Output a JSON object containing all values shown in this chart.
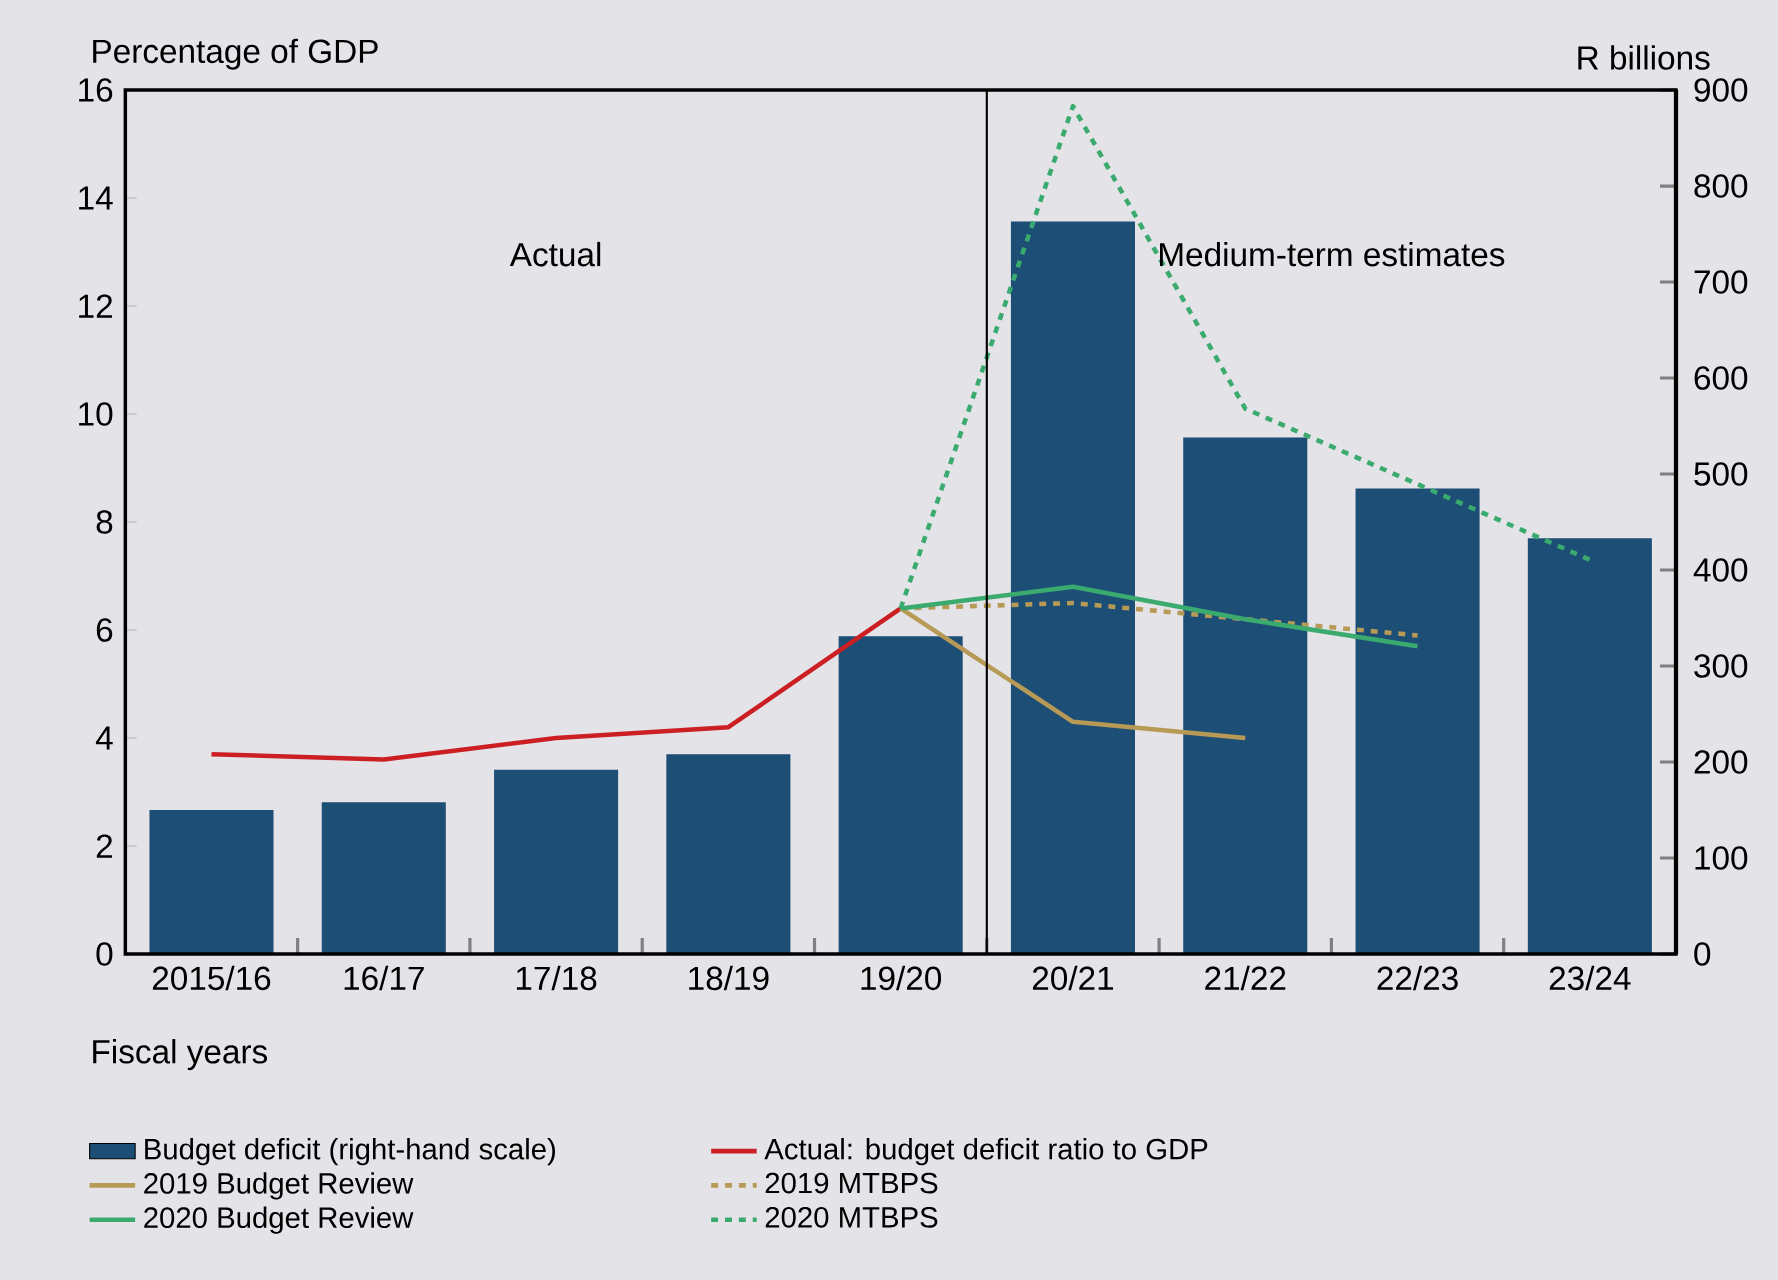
{
  "chart_data": {
    "type": "bar",
    "ylabel": "Percentage of GDP",
    "y2label": "R billions",
    "xlabel": "Fiscal years",
    "categories": [
      "2015/16",
      "16/17",
      "17/18",
      "18/19",
      "19/20",
      "20/21",
      "21/22",
      "22/23",
      "23/24"
    ],
    "series": [
      {
        "name": "Budget deficit (right-hand scale)",
        "axis": "y2",
        "color": "#1d4e76",
        "values": [
          150,
          158,
          192,
          208,
          331,
          763,
          538,
          485,
          433
        ]
      },
      {
        "name": "Actual: budget deficit ratio to GDP",
        "type": "line",
        "color": "#cc1f24",
        "line_style": "solid",
        "values": [
          3.7,
          3.6,
          4.0,
          4.2,
          6.4,
          null,
          null,
          null,
          null
        ]
      },
      {
        "name": "2019 Budget Review",
        "type": "line",
        "color": "#b89a57",
        "line_style": "solid",
        "values": [
          null,
          null,
          null,
          null,
          6.4,
          4.3,
          4.0,
          null,
          null
        ]
      },
      {
        "name": "2019 MTBPS",
        "type": "line",
        "color": "#b89a57",
        "line_style": "dotted",
        "values": [
          null,
          null,
          null,
          null,
          6.4,
          6.5,
          6.2,
          5.9,
          null
        ]
      },
      {
        "name": "2020 Budget Review",
        "type": "line",
        "color": "#3aaa6e",
        "line_style": "solid",
        "values": [
          null,
          null,
          null,
          null,
          6.4,
          6.8,
          6.2,
          5.7,
          null
        ]
      },
      {
        "name": "2020 MTBPS",
        "type": "line",
        "color": "#3aaa6e",
        "line_style": "dotted",
        "values": [
          null,
          null,
          null,
          null,
          6.4,
          15.7,
          10.1,
          8.7,
          7.3
        ]
      }
    ],
    "ylim": [
      0,
      16
    ],
    "yticks": [
      0,
      2,
      4,
      6,
      8,
      10,
      12,
      14,
      16
    ],
    "y2lim": [
      0,
      900
    ],
    "y2ticks": [
      0,
      100,
      200,
      300,
      400,
      500,
      600,
      700,
      800,
      900
    ],
    "annotations": [
      "Actual",
      "Medium-term estimates"
    ],
    "grid": false,
    "legend": "bottom",
    "marker": "none"
  }
}
